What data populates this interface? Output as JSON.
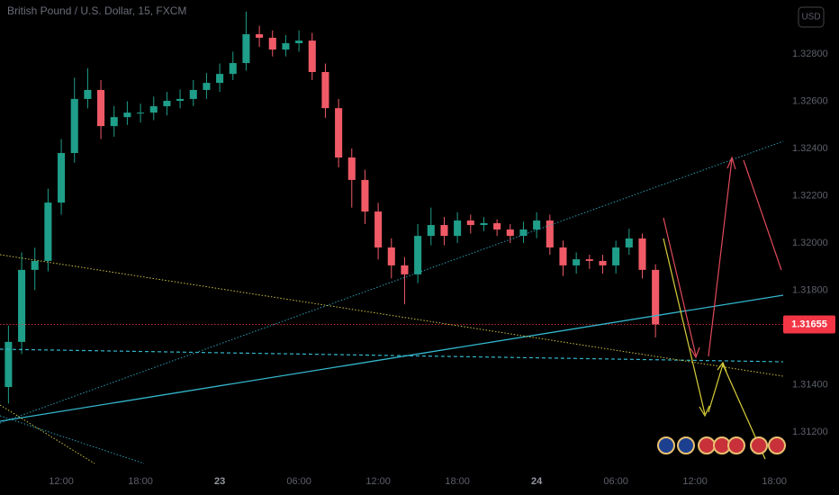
{
  "chart_data": {
    "type": "candlestick",
    "title": "British Pound / U.S. Dollar, 15, FXCM",
    "currency": "USD",
    "x": [
      -4,
      -3,
      -2,
      -1,
      0,
      1,
      2,
      3,
      4,
      5,
      6,
      7,
      8,
      9,
      10,
      11,
      12,
      13,
      14,
      15,
      16,
      17,
      18,
      19,
      20,
      21,
      22,
      23,
      24,
      25,
      26,
      27,
      28,
      29,
      30,
      31,
      32,
      33,
      34,
      35,
      36,
      37,
      38,
      39,
      40,
      41,
      42,
      43,
      44,
      45
    ],
    "open": [
      1.3139,
      1.31581,
      1.31886,
      1.31924,
      1.32171,
      1.32381,
      1.3261,
      1.32648,
      1.32495,
      1.32533,
      1.32552,
      1.32552,
      1.32579,
      1.32602,
      1.3261,
      1.32648,
      1.32678,
      1.32716,
      1.32762,
      1.32884,
      1.32869,
      1.32819,
      1.32846,
      1.32857,
      1.32724,
      1.32571,
      1.32362,
      1.32267,
      1.32133,
      1.31981,
      1.31905,
      1.31867,
      1.3203,
      1.32076,
      1.3203,
      1.32095,
      1.32076,
      1.32084,
      1.32057,
      1.3203,
      1.32057,
      1.32095,
      1.31981,
      1.31905,
      1.31931,
      1.31924,
      1.31905,
      1.31981,
      1.32019,
      1.31886
    ],
    "high": [
      1.3165,
      1.3196,
      1.3198,
      1.3223,
      1.3244,
      1.327,
      1.3274,
      1.3269,
      1.3258,
      1.326,
      1.3259,
      1.3262,
      1.3264,
      1.3265,
      1.3269,
      1.3272,
      1.3276,
      1.3281,
      1.3298,
      1.3292,
      1.329,
      1.3288,
      1.329,
      1.3289,
      1.3276,
      1.3261,
      1.324,
      1.3231,
      1.3217,
      1.3202,
      1.3194,
      1.3208,
      1.3215,
      1.3211,
      1.3213,
      1.3212,
      1.3211,
      1.321,
      1.3208,
      1.3209,
      1.3213,
      1.3212,
      1.3201,
      1.3196,
      1.3195,
      1.3195,
      1.3201,
      1.3206,
      1.3204,
      1.3191
    ],
    "low": [
      1.3132,
      1.3153,
      1.318,
      1.3188,
      1.3212,
      1.3234,
      1.3257,
      1.3244,
      1.3245,
      1.325,
      1.3251,
      1.3252,
      1.3254,
      1.3257,
      1.3258,
      1.3261,
      1.3264,
      1.3269,
      1.3273,
      1.3283,
      1.3279,
      1.3279,
      1.3281,
      1.3269,
      1.3253,
      1.3232,
      1.3215,
      1.3208,
      1.3193,
      1.3185,
      1.3174,
      1.3183,
      1.3199,
      1.3199,
      1.32,
      1.3204,
      1.3205,
      1.3203,
      1.32,
      1.32,
      1.3202,
      1.3195,
      1.3186,
      1.3187,
      1.3189,
      1.3187,
      1.3187,
      1.3195,
      1.3185,
      1.316
    ],
    "close": [
      1.31581,
      1.31886,
      1.31924,
      1.32171,
      1.32381,
      1.3261,
      1.32648,
      1.32495,
      1.32533,
      1.32552,
      1.32552,
      1.32579,
      1.32602,
      1.3261,
      1.32648,
      1.32678,
      1.32716,
      1.32762,
      1.32884,
      1.32869,
      1.32819,
      1.32846,
      1.32857,
      1.32724,
      1.32571,
      1.32362,
      1.32267,
      1.32133,
      1.31981,
      1.31905,
      1.31867,
      1.3203,
      1.32076,
      1.3203,
      1.32095,
      1.32076,
      1.32084,
      1.32057,
      1.3203,
      1.32057,
      1.32095,
      1.31981,
      1.31905,
      1.31931,
      1.31924,
      1.31905,
      1.31981,
      1.32019,
      1.31886,
      1.31655
    ],
    "up_color": "#1f9e89",
    "down_color": "#f05a67",
    "last_price": 1.31655,
    "last_price_color": "#f23645",
    "xlim": [
      -4.64,
      54.67
    ],
    "xticks": [
      {
        "value": 0,
        "label": "12:00"
      },
      {
        "value": 6,
        "label": "18:00"
      },
      {
        "value": 12,
        "label": "23"
      },
      {
        "value": 18,
        "label": "06:00"
      },
      {
        "value": 24,
        "label": "12:00"
      },
      {
        "value": 30,
        "label": "18:00"
      },
      {
        "value": 36,
        "label": "24"
      },
      {
        "value": 42,
        "label": "06:00"
      },
      {
        "value": 48,
        "label": "12:00"
      },
      {
        "value": 54,
        "label": "18:00"
      }
    ],
    "ylim": [
      1.31047,
      1.33029
    ],
    "yticks": [
      {
        "value": 1.312,
        "label": "1.31200"
      },
      {
        "value": 1.314,
        "label": "1.31400"
      },
      {
        "value": 1.318,
        "label": "1.31800"
      },
      {
        "value": 1.32,
        "label": "1.32000"
      },
      {
        "value": 1.322,
        "label": "1.32200"
      },
      {
        "value": 1.324,
        "label": "1.32400"
      },
      {
        "value": 1.326,
        "label": "1.32600"
      },
      {
        "value": 1.328,
        "label": "1.32800"
      }
    ]
  }
}
